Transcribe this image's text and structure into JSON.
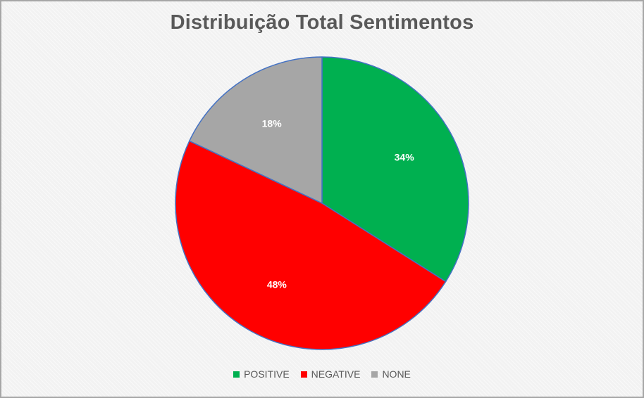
{
  "chart_data": {
    "type": "pie",
    "title": "Distribuição Total Sentimentos",
    "categories": [
      "POSITIVE",
      "NEGATIVE",
      "NONE"
    ],
    "values": [
      34,
      48,
      18
    ],
    "value_labels": [
      "34%",
      "48%",
      "18%"
    ],
    "colors": [
      "#00b050",
      "#ff0000",
      "#a6a6a6"
    ],
    "legend_position": "bottom"
  }
}
